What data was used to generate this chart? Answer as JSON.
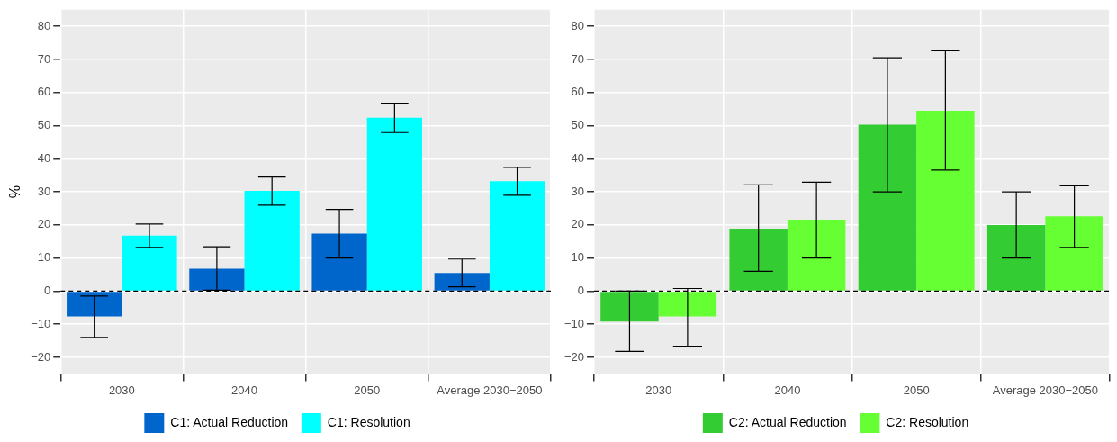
{
  "chart_data": [
    {
      "type": "bar",
      "ylabel": "%",
      "categories": [
        "2030",
        "2040",
        "2050",
        "Average 2030−2050"
      ],
      "series": [
        {
          "name": "C1: Actual Reduction",
          "color": "#0066cc",
          "values": [
            -7.6,
            6.8,
            17.4,
            5.5
          ],
          "errors": [
            [
              -14,
              -1.5
            ],
            [
              0.3,
              13.4
            ],
            [
              10,
              24.7
            ],
            [
              1.3,
              9.7
            ]
          ]
        },
        {
          "name": "C1: Resolution",
          "color": "#00ffff",
          "values": [
            16.8,
            30.3,
            52.4,
            33.2
          ],
          "errors": [
            [
              13.2,
              20.3
            ],
            [
              26,
              34.5
            ],
            [
              47.9,
              56.8
            ],
            [
              29,
              37.4
            ]
          ]
        }
      ],
      "ylim": [
        -25,
        85
      ],
      "yticks": [
        -20,
        -10,
        0,
        10,
        20,
        30,
        40,
        50,
        60,
        70,
        80
      ],
      "ref_lines": [
        {
          "axis": "y",
          "value": 0,
          "line_style": "dashed",
          "color": "#000000"
        }
      ],
      "grid": true,
      "legend": "bottom"
    },
    {
      "type": "bar",
      "categories": [
        "2030",
        "2040",
        "2050",
        "Average 2030−2050"
      ],
      "series": [
        {
          "name": "C2: Actual Reduction",
          "color": "#33cc33",
          "values": [
            -9.2,
            18.9,
            50.3,
            20
          ],
          "errors": [
            [
              -18.2,
              0
            ],
            [
              6,
              32.1
            ],
            [
              30,
              70.5
            ],
            [
              10,
              30
            ]
          ]
        },
        {
          "name": "C2: Resolution",
          "color": "#66ff33",
          "values": [
            -7.6,
            21.6,
            54.5,
            22.6
          ],
          "errors": [
            [
              -16.6,
              0.8
            ],
            [
              10,
              32.9
            ],
            [
              36.6,
              72.6
            ],
            [
              13.2,
              31.8
            ]
          ]
        }
      ],
      "ylim": [
        -25,
        85
      ],
      "yticks": [
        -20,
        -10,
        0,
        10,
        20,
        30,
        40,
        50,
        60,
        70,
        80
      ],
      "ref_lines": [
        {
          "axis": "y",
          "value": 0,
          "line_style": "dashed",
          "color": "#000000"
        }
      ],
      "grid": true,
      "legend": "bottom"
    }
  ]
}
